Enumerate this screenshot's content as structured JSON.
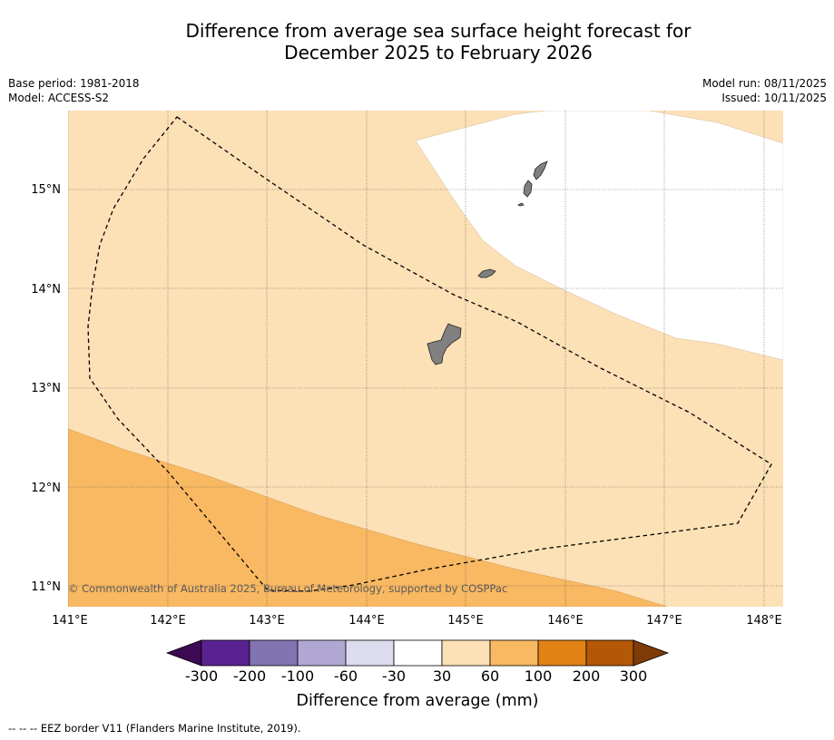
{
  "header": {
    "title_line1": "Difference from average sea surface height forecast for",
    "title_line2": "December 2025 to February 2026",
    "base_period": "Base period: 1981-2018",
    "model": "Model: ACCESS-S2",
    "model_run": "Model run: 08/11/2025",
    "issued": "Issued: 10/11/2025"
  },
  "map": {
    "lon_labels": [
      "141°E",
      "142°E",
      "143°E",
      "144°E",
      "145°E",
      "146°E",
      "147°E",
      "148°E"
    ],
    "lat_labels": [
      "15°N",
      "14°N",
      "13°N",
      "12°N",
      "11°N"
    ],
    "copyright": "© Commonwealth of Australia 2025, Bureau of Meteorology, supported by COSPPac",
    "regions": [
      {
        "band": "30 to 60 mm",
        "color": "#fce0b6"
      },
      {
        "band": "60 to 100 mm",
        "color": "#f9b862"
      },
      {
        "band": "-30 to 30 mm",
        "color": "#ffffff"
      }
    ],
    "land_color": "#808080",
    "eez_line": "dashed"
  },
  "colorbar": {
    "tick_labels": [
      "-300",
      "-200",
      "-100",
      "-60",
      "-30",
      "30",
      "60",
      "100",
      "200",
      "300"
    ],
    "colors": [
      "#3c0a52",
      "#5a2290",
      "#8273b2",
      "#b0a8d2",
      "#dcdcee",
      "#ffffff",
      "#fce0b6",
      "#f9b862",
      "#e08214",
      "#b35806",
      "#7f3b08"
    ],
    "label": "Difference from average (mm)"
  },
  "footnote": "--  --  -- EEZ border V11 (Flanders Marine Institute, 2019)."
}
